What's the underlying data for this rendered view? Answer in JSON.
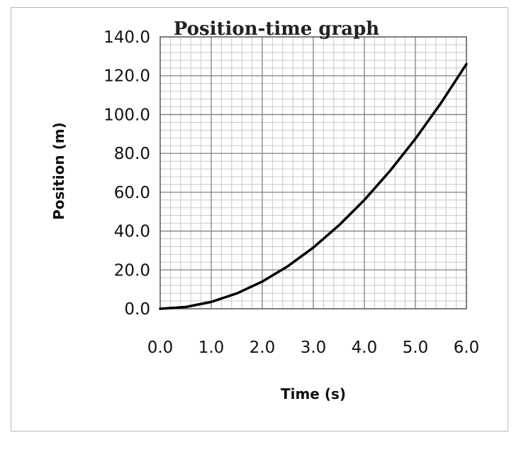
{
  "chart_data": {
    "type": "line",
    "title": "Position-time graph",
    "xlabel": "Time (s)",
    "ylabel": "Position (m)",
    "xlim": [
      0,
      6
    ],
    "ylim": [
      0,
      140
    ],
    "xticks": [
      "0.0",
      "1.0",
      "2.0",
      "3.0",
      "4.0",
      "5.0",
      "6.0"
    ],
    "yticks": [
      "0.0",
      "20.0",
      "40.0",
      "60.0",
      "80.0",
      "100.0",
      "120.0",
      "140.0"
    ],
    "grid": true,
    "legend": "none",
    "series": [
      {
        "x": [
          0.0,
          0.5,
          1.0,
          1.5,
          2.0,
          2.5,
          3.0,
          3.5,
          4.0,
          4.5,
          5.0,
          5.5,
          6.0
        ],
        "y": [
          0.0,
          0.9,
          3.5,
          7.9,
          14.0,
          21.9,
          31.5,
          42.9,
          56.0,
          70.9,
          87.5,
          105.9,
          126.0
        ],
        "color": "#000000"
      }
    ]
  }
}
